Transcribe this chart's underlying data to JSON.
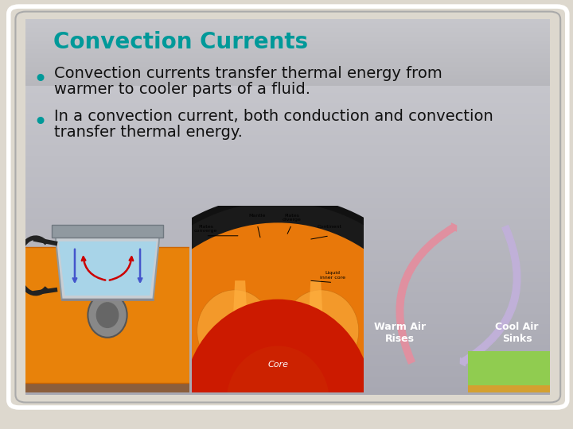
{
  "bg_color": "#ddd8ce",
  "card_bg_gradient": [
    "#cdcdd0",
    "#a8a8b0"
  ],
  "title_bar_gradient": [
    "#b8b8bc",
    "#a0a0a8"
  ],
  "card_border_color": "#ffffff",
  "title": "Convection Currents",
  "title_color": "#009999",
  "title_fontsize": 20,
  "bullet_color": "#009999",
  "bullet_fontsize": 14,
  "bullet1_line1": "Convection currents transfer thermal energy from",
  "bullet1_line2": "warmer to cooler parts of a fluid.",
  "bullet2_line1": "In a convection current, both conduction and convection",
  "bullet2_line2": "transfer thermal energy.",
  "warm_air_label": "Warm Air\nRises",
  "cool_air_label": "Cool Air\nSinks",
  "core_label": "Core",
  "mantle_label": "Mantle"
}
